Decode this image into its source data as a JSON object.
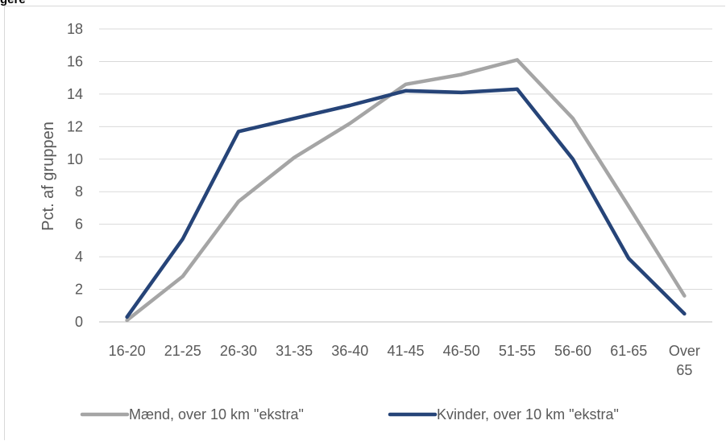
{
  "header": {
    "clipped_title": "gere"
  },
  "chart_data": {
    "type": "line",
    "categories": [
      "16-20",
      "21-25",
      "26-30",
      "31-35",
      "36-40",
      "41-45",
      "46-50",
      "51-55",
      "56-60",
      "61-65",
      "Over 65"
    ],
    "series": [
      {
        "name": "Mænd, over 10 km \"ekstra\"",
        "color": "#a5a5a5",
        "values": [
          0.1,
          2.8,
          7.4,
          10.1,
          12.2,
          14.6,
          15.2,
          16.1,
          12.5,
          7.1,
          1.6
        ]
      },
      {
        "name": "Kvinder, over 10 km \"ekstra\"",
        "color": "#264478",
        "values": [
          0.3,
          5.1,
          11.7,
          12.5,
          13.3,
          14.2,
          14.1,
          14.3,
          10.0,
          3.9,
          0.5
        ]
      }
    ],
    "ylabel": "Pct. af gruppen",
    "xlabel": "",
    "ylim": [
      0,
      18
    ],
    "yticks": [
      "0",
      "2",
      "4",
      "6",
      "8",
      "10",
      "12",
      "14",
      "16",
      "18"
    ],
    "grid": true,
    "legend": "bottom"
  }
}
